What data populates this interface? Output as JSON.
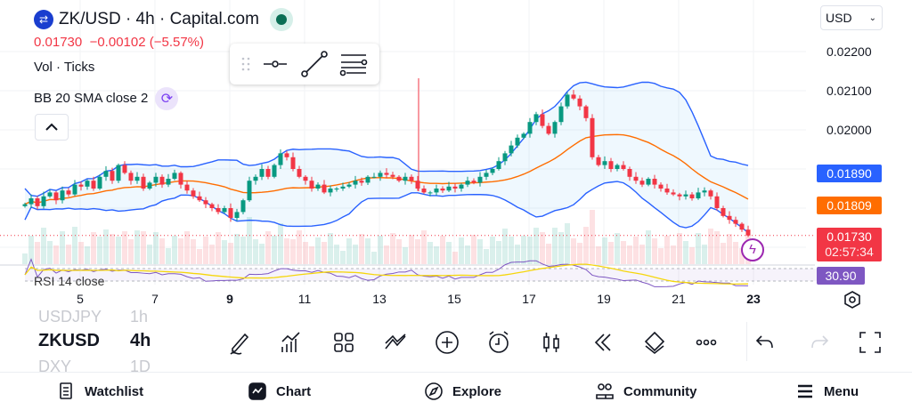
{
  "header": {
    "symbol_title": "ZK/USD · 4h · Capital.com",
    "last_price": "0.01730",
    "change": "−0.00102 (−5.57%)",
    "market_status": "open",
    "status_color": "#0b6e55"
  },
  "indicators": {
    "volume": "Vol · Ticks",
    "bb": "BB 20 SMA close 2",
    "rsi": "RSI 14 close"
  },
  "currency": "USD",
  "price_axis": [
    "0.02200",
    "0.02100",
    "0.02000"
  ],
  "tags": {
    "bb_upper": "0.01890",
    "bb_basis": "0.01809",
    "last": "0.01730",
    "countdown": "02:57:34",
    "rsi": "30.90"
  },
  "colors": {
    "up": "#089981",
    "down": "#f23645",
    "bb_band": "#2962ff",
    "bb_basis": "#ff6d00",
    "rsi": "#7e57c2",
    "rsi_ma": "#f5d60c"
  },
  "chart_data": {
    "type": "candlestick",
    "timeframe": "4h",
    "x_ticks": [
      "5",
      "7",
      "9",
      "11",
      "13",
      "15",
      "17",
      "19",
      "21",
      "23"
    ],
    "ylim": [
      0.017,
      0.0223
    ],
    "closes": [
      0.0181,
      0.01825,
      0.01805,
      0.0183,
      0.0184,
      0.0182,
      0.01845,
      0.01835,
      0.0186,
      0.01855,
      0.0187,
      0.0185,
      0.0188,
      0.01895,
      0.0187,
      0.0191,
      0.0189,
      0.0187,
      0.0188,
      0.0185,
      0.01865,
      0.0188,
      0.0186,
      0.01875,
      0.0189,
      0.0186,
      0.01845,
      0.0183,
      0.0182,
      0.0181,
      0.018,
      0.0179,
      0.018,
      0.01775,
      0.0179,
      0.0182,
      0.0187,
      0.0188,
      0.019,
      0.0188,
      0.0191,
      0.0194,
      0.0193,
      0.019,
      0.0188,
      0.0187,
      0.0185,
      0.0186,
      0.0184,
      0.0185,
      0.0185,
      0.01855,
      0.0186,
      0.0187,
      0.01865,
      0.0188,
      0.0188,
      0.0189,
      0.01885,
      0.0188,
      0.0187,
      0.0188,
      0.0187,
      0.0185,
      0.0184,
      0.0184,
      0.0185,
      0.01845,
      0.01855,
      0.0185,
      0.0186,
      0.0187,
      0.01865,
      0.0188,
      0.0189,
      0.019,
      0.0192,
      0.0194,
      0.0196,
      0.0198,
      0.0199,
      0.0202,
      0.0204,
      0.0201,
      0.0199,
      0.0202,
      0.0206,
      0.0209,
      0.0208,
      0.0206,
      0.0203,
      0.0193,
      0.0191,
      0.0192,
      0.019,
      0.0191,
      0.019,
      0.0188,
      0.0187,
      0.0186,
      0.01875,
      0.0186,
      0.0185,
      0.0184,
      0.01835,
      0.0183,
      0.01835,
      0.01825,
      0.0184,
      0.01845,
      0.0183,
      0.018,
      0.0178,
      0.0177,
      0.0176,
      0.01745,
      0.0173
    ]
  },
  "toolbar": {
    "watch_prev": "USDJPY",
    "watch_prev_tf": "1h",
    "symbol": "ZKUSD",
    "timeframe": "4h",
    "watch_next": "DXY",
    "watch_next_tf": "1D"
  },
  "nav": [
    {
      "label": "Watchlist"
    },
    {
      "label": "Chart"
    },
    {
      "label": "Explore"
    },
    {
      "label": "Community"
    },
    {
      "label": "Menu"
    }
  ]
}
